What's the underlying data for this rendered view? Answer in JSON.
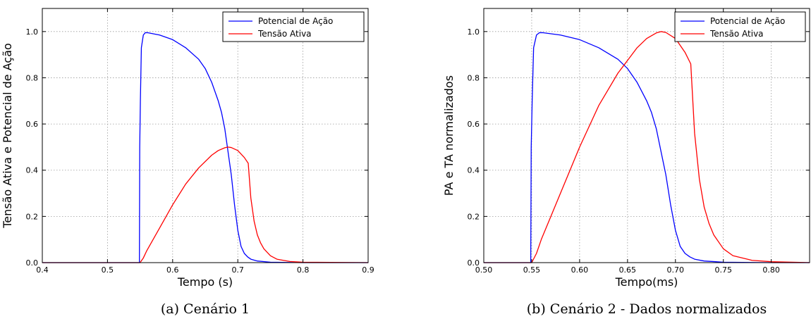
{
  "chart_data": [
    {
      "type": "line",
      "caption": "(a) Cenário 1",
      "xlabel": "Tempo (s)",
      "ylabel": "Tensão Ativa e Potencial de Ação",
      "xlim": [
        0.4,
        0.9
      ],
      "ylim": [
        0.0,
        1.1
      ],
      "xticks": [
        "0.4",
        "0.5",
        "0.6",
        "0.7",
        "0.8",
        "0.9"
      ],
      "yticks": [
        "0.0",
        "0.2",
        "0.4",
        "0.6",
        "0.8",
        "1.0"
      ],
      "grid": true,
      "legend_position": "top-right",
      "series": [
        {
          "name": "Potencial de Ação",
          "color": "#0000ff",
          "x": [
            0.4,
            0.549,
            0.5495,
            0.5505,
            0.552,
            0.555,
            0.558,
            0.562,
            0.58,
            0.6,
            0.62,
            0.64,
            0.65,
            0.66,
            0.67,
            0.675,
            0.68,
            0.685,
            0.69,
            0.695,
            0.7,
            0.705,
            0.71,
            0.715,
            0.72,
            0.73,
            0.75,
            0.8,
            0.9
          ],
          "y": [
            0.0,
            0.0,
            0.5,
            0.7,
            0.93,
            0.985,
            0.995,
            0.995,
            0.985,
            0.965,
            0.93,
            0.88,
            0.84,
            0.78,
            0.7,
            0.65,
            0.58,
            0.48,
            0.38,
            0.25,
            0.14,
            0.07,
            0.04,
            0.025,
            0.015,
            0.007,
            0.002,
            0.0,
            0.0
          ]
        },
        {
          "name": "Tensão Ativa",
          "color": "#ff0000",
          "x": [
            0.4,
            0.55,
            0.555,
            0.56,
            0.57,
            0.58,
            0.6,
            0.62,
            0.64,
            0.66,
            0.67,
            0.68,
            0.685,
            0.69,
            0.7,
            0.71,
            0.716,
            0.72,
            0.725,
            0.73,
            0.735,
            0.74,
            0.75,
            0.76,
            0.78,
            0.8,
            0.9
          ],
          "y": [
            0.0,
            0.0,
            0.02,
            0.05,
            0.1,
            0.15,
            0.25,
            0.34,
            0.41,
            0.465,
            0.485,
            0.497,
            0.5,
            0.498,
            0.485,
            0.455,
            0.43,
            0.28,
            0.18,
            0.12,
            0.085,
            0.06,
            0.03,
            0.015,
            0.005,
            0.002,
            0.0
          ]
        }
      ]
    },
    {
      "type": "line",
      "caption": "(b) Cenário 2 - Dados normalizados",
      "xlabel": "Tempo(ms)",
      "ylabel": "PA e TA normalizados",
      "xlim": [
        0.5,
        0.84
      ],
      "ylim": [
        0.0,
        1.1
      ],
      "xticks": [
        "0.50",
        "0.55",
        "0.60",
        "0.65",
        "0.70",
        "0.75",
        "0.80"
      ],
      "yticks": [
        "0.0",
        "0.2",
        "0.4",
        "0.6",
        "0.8",
        "1.0"
      ],
      "grid": true,
      "legend_position": "top-right",
      "series": [
        {
          "name": "Potencial de Ação",
          "color": "#0000ff",
          "x": [
            0.5,
            0.549,
            0.5495,
            0.5505,
            0.552,
            0.555,
            0.558,
            0.562,
            0.58,
            0.6,
            0.62,
            0.64,
            0.65,
            0.66,
            0.67,
            0.675,
            0.68,
            0.685,
            0.69,
            0.695,
            0.7,
            0.705,
            0.71,
            0.715,
            0.72,
            0.73,
            0.75,
            0.8,
            0.84
          ],
          "y": [
            0.0,
            0.0,
            0.5,
            0.7,
            0.93,
            0.985,
            0.995,
            0.995,
            0.985,
            0.965,
            0.93,
            0.88,
            0.84,
            0.78,
            0.7,
            0.65,
            0.58,
            0.48,
            0.38,
            0.25,
            0.14,
            0.07,
            0.04,
            0.025,
            0.015,
            0.007,
            0.002,
            0.0,
            0.0
          ]
        },
        {
          "name": "Tensão Ativa",
          "color": "#ff0000",
          "x": [
            0.5,
            0.55,
            0.555,
            0.56,
            0.57,
            0.58,
            0.6,
            0.62,
            0.64,
            0.66,
            0.67,
            0.68,
            0.685,
            0.69,
            0.7,
            0.71,
            0.716,
            0.72,
            0.725,
            0.73,
            0.735,
            0.74,
            0.75,
            0.76,
            0.78,
            0.8,
            0.84
          ],
          "y": [
            0.0,
            0.0,
            0.04,
            0.1,
            0.2,
            0.3,
            0.5,
            0.68,
            0.82,
            0.93,
            0.97,
            0.994,
            1.0,
            0.996,
            0.97,
            0.91,
            0.86,
            0.56,
            0.36,
            0.24,
            0.17,
            0.12,
            0.06,
            0.03,
            0.01,
            0.004,
            0.0
          ]
        }
      ]
    }
  ]
}
